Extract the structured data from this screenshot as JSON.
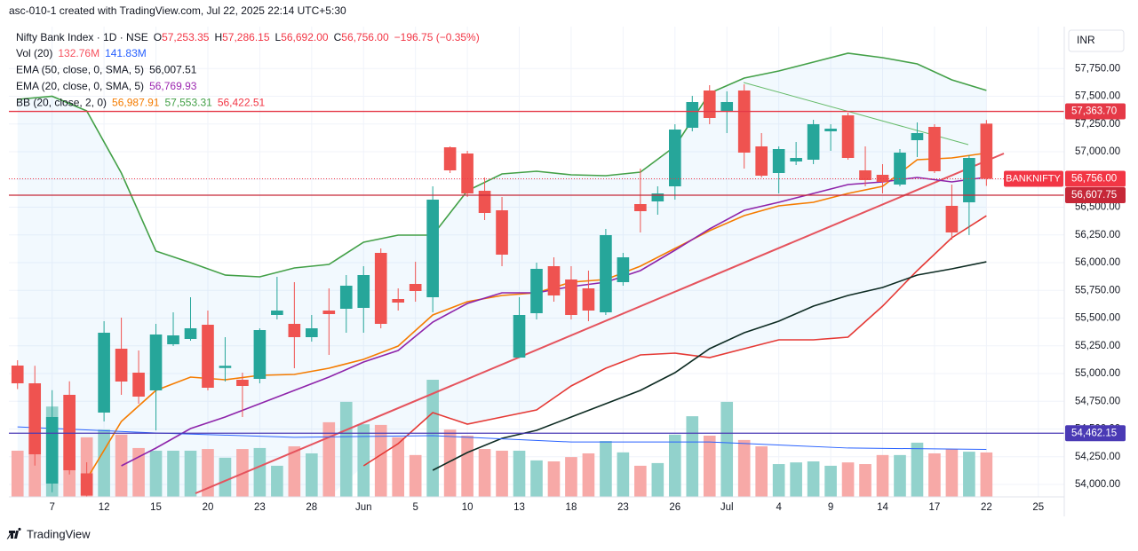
{
  "header": "asc-010-1 created with TradingView.com, Jul 22, 2025 22:14 UTC+5:30",
  "footer": "TradingView",
  "currency": "INR",
  "legend": {
    "title": "Nifty Bank Index · 1D · NSE",
    "pairs": [
      {
        "key": "O",
        "value": "57,253.35"
      },
      {
        "key": "H",
        "value": "57,286.15"
      },
      {
        "key": "L",
        "value": "56,692.00"
      },
      {
        "key": "C",
        "value": "56,756.00"
      }
    ],
    "change": "−196.75 (−0.35%)",
    "indicators": [
      {
        "title": "Vol (20)",
        "values": [
          {
            "text": "132.76M",
            "color": "#f7525f"
          },
          {
            "text": "141.83M",
            "color": "#2962ff"
          }
        ]
      },
      {
        "title": "EMA (50, close, 0, SMA, 5)",
        "values": [
          {
            "text": "56,007.51",
            "color": "#131722"
          }
        ]
      },
      {
        "title": "EMA (20, close, 0, SMA, 5)",
        "values": [
          {
            "text": "56,769.93",
            "color": "#9c27b0"
          }
        ]
      },
      {
        "title": "BB (20, close, 2, 0)",
        "values": [
          {
            "text": "56,987.91",
            "color": "#f57c00"
          },
          {
            "text": "57,553.31",
            "color": "#43a047"
          },
          {
            "text": "56,422.51",
            "color": "#f23645"
          }
        ]
      }
    ]
  },
  "chart_data": {
    "type": "candlestick",
    "up_color": "#26a69a",
    "down_color": "#ef5350",
    "volume_up_color": "#92d2cc",
    "volume_down_color": "#f7a9a7",
    "xlim": [
      -0.5,
      60.5
    ],
    "xticks": [
      {
        "value": 2,
        "label": "7"
      },
      {
        "value": 5,
        "label": "12"
      },
      {
        "value": 8,
        "label": "15"
      },
      {
        "value": 11,
        "label": "20"
      },
      {
        "value": 14,
        "label": "23"
      },
      {
        "value": 17,
        "label": "28"
      },
      {
        "value": 20,
        "label": "Jun"
      },
      {
        "value": 23,
        "label": "5"
      },
      {
        "value": 26,
        "label": "10"
      },
      {
        "value": 29,
        "label": "13"
      },
      {
        "value": 32,
        "label": "18"
      },
      {
        "value": 35,
        "label": "23"
      },
      {
        "value": 38,
        "label": "26"
      },
      {
        "value": 41,
        "label": "Jul"
      },
      {
        "value": 44,
        "label": "4"
      },
      {
        "value": 47,
        "label": "9"
      },
      {
        "value": 50,
        "label": "14"
      },
      {
        "value": 53,
        "label": "17"
      },
      {
        "value": 56,
        "label": "22"
      },
      {
        "value": 59,
        "label": "25"
      }
    ],
    "ylim": [
      53888,
      58128
    ],
    "yticks": [
      {
        "value": 54000,
        "label": "54,000.00"
      },
      {
        "value": 54250,
        "label": "54,250.00"
      },
      {
        "value": 54500,
        "label": "54,500.00"
      },
      {
        "value": 54750,
        "label": "54,750.00"
      },
      {
        "value": 55000,
        "label": "55,000.00"
      },
      {
        "value": 55250,
        "label": "55,250.00"
      },
      {
        "value": 55500,
        "label": "55,500.00"
      },
      {
        "value": 55750,
        "label": "55,750.00"
      },
      {
        "value": 56000,
        "label": "56,000.00"
      },
      {
        "value": 56250,
        "label": "56,250.00"
      },
      {
        "value": 56500,
        "label": "56,500.00"
      },
      {
        "value": 56750,
        "label": "56,750.00"
      },
      {
        "value": 57000,
        "label": "57,000.00"
      },
      {
        "value": 57250,
        "label": "57,250.00"
      },
      {
        "value": 57500,
        "label": "57,500.00"
      },
      {
        "value": 57750,
        "label": "57,750.00"
      }
    ],
    "grid": true,
    "open": [
      55072,
      54912,
      54008,
      54808,
      54100,
      54648,
      55224,
      55008,
      54848,
      55264,
      55312,
      55440,
      55050,
      54944,
      54952,
      55528,
      55448,
      55328,
      55568,
      55584,
      55592,
      56088,
      55672,
      55808,
      55688,
      57040,
      56984,
      56648,
      56472,
      55144,
      55544,
      55968,
      55848,
      55768,
      55552,
      55824,
      56528,
      56552,
      56688,
      57216,
      57552,
      57368,
      57552,
      57048,
      56808,
      56912,
      56928,
      57184,
      57328,
      56832,
      56792,
      56704,
      57104,
      57224,
      56512,
      56544,
      57253.35
    ],
    "high": [
      55120,
      55070,
      54850,
      54930,
      54200,
      55472,
      55504,
      55208,
      55448,
      55552,
      55688,
      55568,
      55328,
      55008,
      55408,
      55872,
      55824,
      55528,
      55768,
      55888,
      55968,
      56128,
      55768,
      56008,
      56688,
      57048,
      57008,
      56768,
      56592,
      55688,
      56000,
      56048,
      55968,
      55928,
      56304,
      56088,
      56848,
      56688,
      57248,
      57504,
      57600,
      57544,
      57608,
      57168,
      57048,
      57088,
      57288,
      57248,
      57352,
      57048,
      56888,
      57024,
      57264,
      57248,
      56704,
      56968,
      57286.15
    ],
    "low": [
      54860,
      54170,
      53930,
      54090,
      53850,
      54568,
      54808,
      54728,
      54488,
      55248,
      55296,
      54848,
      54928,
      54608,
      54912,
      55488,
      55048,
      55288,
      55168,
      55368,
      55368,
      55408,
      55568,
      55648,
      55552,
      56808,
      56592,
      56384,
      55968,
      55144,
      55488,
      55648,
      55488,
      55472,
      55528,
      55792,
      56272,
      56432,
      56568,
      57184,
      57248,
      57168,
      56848,
      56768,
      56624,
      56880,
      56888,
      57008,
      56928,
      56688,
      56624,
      56688,
      56952,
      56808,
      56208,
      56248,
      56692
    ],
    "close": [
      54912,
      54272,
      54608,
      54128,
      53900,
      55368,
      54928,
      54792,
      55352,
      55344,
      55408,
      54872,
      55070,
      54888,
      55392,
      55568,
      55328,
      55408,
      55536,
      55792,
      55888,
      55448,
      55640,
      55744,
      56568,
      56832,
      56624,
      56448,
      56072,
      55528,
      55944,
      55704,
      55528,
      55568,
      56248,
      56048,
      56464,
      56624,
      57200,
      57448,
      57304,
      57448,
      56992,
      56784,
      57024,
      56944,
      57248,
      57208,
      56944,
      56744,
      56728,
      56992,
      57168,
      56824,
      56272,
      56944,
      56756
    ],
    "volume": [
      138,
      186,
      270,
      305,
      178,
      201,
      186,
      146,
      138,
      138,
      138,
      143,
      117,
      143,
      146,
      93,
      151,
      130,
      223,
      284,
      217,
      215,
      178,
      125,
      350,
      201,
      183,
      143,
      138,
      138,
      109,
      106,
      119,
      130,
      167,
      133,
      93,
      101,
      186,
      241,
      183,
      284,
      170,
      151,
      98,
      103,
      106,
      93,
      103,
      98,
      125,
      125,
      162,
      130,
      143,
      135,
      132.76
    ],
    "lines": [
      {
        "color": "#43a047",
        "x": [
          0,
          2,
          4,
          6,
          8,
          10,
          12,
          14,
          16,
          18,
          20,
          22,
          24,
          26,
          28,
          30,
          32,
          34,
          36,
          38,
          40,
          42,
          44,
          46,
          48,
          50,
          52,
          54,
          56
        ],
        "values": [
          57472,
          57500,
          57368,
          56808,
          56104,
          56000,
          55888,
          55872,
          55952,
          55984,
          56184,
          56248,
          56248,
          56648,
          56800,
          56824,
          56792,
          56784,
          56816,
          57048,
          57528,
          57664,
          57728,
          57808,
          57888,
          57848,
          57792,
          57648,
          57553.31
        ]
      },
      {
        "color": "#e53935",
        "x": [
          20,
          22,
          24,
          26,
          28,
          30,
          32,
          34,
          36,
          38,
          40,
          42,
          44,
          46,
          48,
          50,
          52,
          54,
          56
        ],
        "values": [
          54168,
          54368,
          54648,
          54544,
          54608,
          54672,
          54888,
          55048,
          55168,
          55184,
          55144,
          55224,
          55304,
          55304,
          55328,
          55608,
          55928,
          56224,
          56422.51
        ]
      },
      {
        "color": "#f57c00",
        "x": [
          4,
          6,
          8,
          10,
          12,
          14,
          16,
          18,
          20,
          22,
          24,
          26,
          28,
          30,
          32,
          34,
          36,
          38,
          40,
          42,
          44,
          46,
          48,
          50,
          52,
          54,
          56
        ],
        "values": [
          54048,
          54568,
          54848,
          54968,
          54944,
          54984,
          54992,
          55048,
          55128,
          55248,
          55528,
          55648,
          55704,
          55728,
          55824,
          55848,
          55968,
          56128,
          56288,
          56424,
          56512,
          56544,
          56624,
          56688,
          56928,
          56944,
          56987.91
        ]
      },
      {
        "color": "#8e24aa",
        "x": [
          6,
          8,
          10,
          12,
          14,
          16,
          18,
          20,
          22,
          24,
          26,
          28,
          30,
          32,
          34,
          36,
          38,
          40,
          42,
          44,
          46,
          48,
          50,
          52,
          54,
          56
        ],
        "values": [
          54168,
          54328,
          54504,
          54608,
          54728,
          54848,
          54968,
          55104,
          55208,
          55464,
          55632,
          55728,
          55728,
          55784,
          55824,
          55928,
          56112,
          56304,
          56472,
          56544,
          56624,
          56704,
          56728,
          56768,
          56728,
          56769.93
        ]
      },
      {
        "color": "#0d2b22",
        "x": [
          24,
          26,
          28,
          30,
          32,
          34,
          36,
          38,
          40,
          42,
          44,
          46,
          48,
          50,
          52,
          54,
          56
        ],
        "values": [
          54128,
          54288,
          54416,
          54488,
          54608,
          54728,
          54848,
          55008,
          55224,
          55368,
          55472,
          55608,
          55704,
          55776,
          55888,
          55944,
          56007.51
        ]
      },
      {
        "color": "#2962ff",
        "axis": "volume",
        "x": [
          0,
          8,
          16,
          24,
          32,
          40,
          48,
          56
        ],
        "values": [
          209,
          191,
          178,
          183,
          164,
          164,
          146,
          141.83
        ]
      }
    ],
    "levels": [
      {
        "value": 57363.7,
        "label": "57,363.70",
        "color": "#e53947"
      },
      {
        "value": 56607.75,
        "label": "56,607.75",
        "color": "#c62838"
      },
      {
        "value": 54462.15,
        "label": "54,462.15",
        "color": "#4a3ab5"
      }
    ],
    "last_price": {
      "name": "BANKNIFTY",
      "value": 56756,
      "label": "56,756.00",
      "color": "#f23645"
    }
  }
}
